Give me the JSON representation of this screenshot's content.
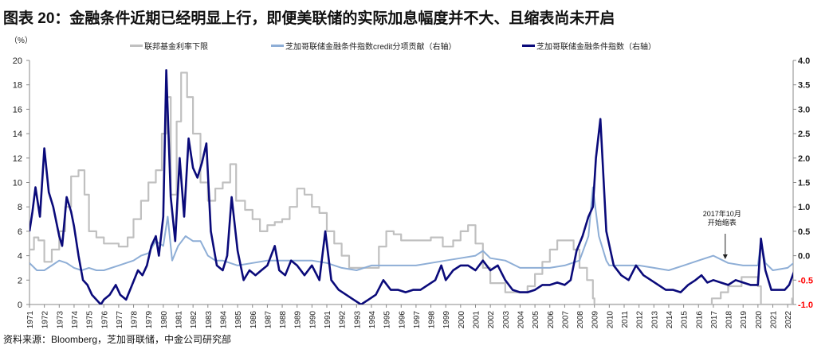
{
  "title": "图表 20：金融条件近期已经明显上行，即便美联储的实际加息幅度并不大、且缩表尚未开启",
  "source": "资料来源：Bloomberg，芝加哥联储，中金公司研究部",
  "colors": {
    "fed": "#c0c0c0",
    "credit": "#8eaed6",
    "nfci": "#0a0a7a",
    "neg_label": "#ff0000"
  },
  "chart_data": {
    "type": "line",
    "unit_left": "（%）",
    "ylim_left": [
      0,
      20
    ],
    "yticks_left": [
      "0",
      "2",
      "4",
      "6",
      "8",
      "10",
      "12",
      "14",
      "16",
      "18",
      "20"
    ],
    "ylim_right": [
      -1.0,
      4.0
    ],
    "yticks_right": [
      "-1.0",
      "-0.5",
      "0.0",
      "0.5",
      "1.0",
      "1.5",
      "2.0",
      "2.5",
      "3.0",
      "3.5",
      "4.0"
    ],
    "xticks": [
      "1971",
      "1972",
      "1973",
      "1974",
      "1975",
      "1976",
      "1977",
      "1978",
      "1979",
      "1980",
      "1981",
      "1982",
      "1983",
      "1984",
      "1985",
      "1986",
      "1987",
      "1988",
      "1989",
      "1990",
      "1991",
      "1992",
      "1993",
      "1994",
      "1995",
      "1996",
      "1997",
      "1998",
      "1999",
      "2000",
      "2001",
      "2002",
      "2003",
      "2004",
      "2005",
      "2006",
      "2007",
      "2008",
      "2009",
      "2010",
      "2011",
      "2012",
      "2013",
      "2014",
      "2015",
      "2016",
      "2017",
      "2018",
      "2019",
      "2020",
      "2021",
      "2022"
    ],
    "annotation": {
      "line1": "2017年10月",
      "line2": "开始缩表",
      "x": 2017.8
    },
    "series": [
      {
        "name": "联邦基金利率下限",
        "axis": "left",
        "x": [
          1971,
          1971.3,
          1971.6,
          1972,
          1972.5,
          1973,
          1973.4,
          1973.8,
          1974.3,
          1974.7,
          1975,
          1975.5,
          1976,
          1977,
          1977.6,
          1978,
          1978.5,
          1979,
          1979.5,
          1979.9,
          1980.2,
          1980.5,
          1980.9,
          1981.2,
          1981.6,
          1982,
          1982.5,
          1983,
          1983.5,
          1984,
          1984.5,
          1984.9,
          1985.5,
          1986,
          1986.5,
          1987,
          1987.5,
          1988,
          1988.5,
          1989,
          1989.5,
          1990,
          1990.5,
          1991,
          1991.5,
          1992,
          1992.5,
          1993,
          1994,
          1994.5,
          1995,
          1995.5,
          1996,
          1997,
          1998,
          1998.8,
          1999,
          1999.5,
          2000,
          2000.5,
          2001,
          2001.5,
          2002,
          2003,
          2004,
          2004.5,
          2005,
          2005.5,
          2006,
          2006.5,
          2007,
          2007.6,
          2008,
          2008.5,
          2008.9,
          2009,
          2015.9,
          2016.9,
          2017.5,
          2018,
          2018.9,
          2019.5,
          2020,
          2020.2,
          2022.1,
          2022.3,
          2022.6
        ],
        "values": [
          4.5,
          5.5,
          5.25,
          3.5,
          4.5,
          6,
          8,
          10.5,
          11,
          9,
          6,
          5.5,
          5,
          4.75,
          5.5,
          7,
          8.5,
          10,
          11,
          14,
          17,
          9,
          15,
          19,
          17,
          14,
          10,
          8.5,
          9.5,
          10,
          11.5,
          8.5,
          7.75,
          7,
          6,
          6.5,
          6.75,
          7,
          8,
          9.5,
          9,
          8,
          7.5,
          6,
          5,
          4,
          3,
          3,
          3,
          4.75,
          6,
          5.75,
          5.25,
          5.25,
          5.5,
          4.75,
          4.75,
          5.25,
          6,
          6.5,
          5,
          3,
          1.75,
          1,
          1,
          1.5,
          2.5,
          3.5,
          4.5,
          5.25,
          5.25,
          4.5,
          3,
          2,
          0.5,
          0,
          0,
          0.5,
          1,
          1.5,
          2.25,
          2.25,
          1.5,
          0,
          0,
          0.5,
          1.5
        ]
      },
      {
        "name": "芝加哥联储金融条件指数credit分项贡献（右轴）",
        "axis": "right",
        "x": [
          1971,
          1971.5,
          1972,
          1972.5,
          1973,
          1973.5,
          1974,
          1974.5,
          1975,
          1975.5,
          1976,
          1977,
          1978,
          1978.5,
          1979,
          1979.5,
          1980,
          1980.3,
          1980.6,
          1981,
          1981.5,
          1982,
          1982.5,
          1983,
          1983.5,
          1984,
          1985,
          1986,
          1987,
          1988,
          1989,
          1990,
          1991,
          1992,
          1993,
          1994,
          1995,
          1996,
          1997,
          1998,
          1999,
          2000,
          2001,
          2001.5,
          2002,
          2003,
          2004,
          2005,
          2006,
          2007,
          2008,
          2008.6,
          2008.9,
          2009.3,
          2009.8,
          2010,
          2011,
          2012,
          2013,
          2014,
          2015,
          2016,
          2017,
          2018,
          2019,
          2020,
          2020.2,
          2020.5,
          2021,
          2022,
          2022.6
        ],
        "values": [
          -0.15,
          -0.3,
          -0.3,
          -0.2,
          -0.1,
          -0.15,
          -0.25,
          -0.3,
          -0.25,
          -0.3,
          -0.3,
          -0.2,
          -0.1,
          0.0,
          0.05,
          0.3,
          0.2,
          0.8,
          -0.1,
          0.2,
          0.4,
          0.3,
          0.3,
          0.0,
          -0.1,
          -0.1,
          -0.2,
          -0.15,
          -0.1,
          -0.1,
          -0.1,
          -0.1,
          -0.15,
          -0.25,
          -0.3,
          -0.2,
          -0.2,
          -0.2,
          -0.2,
          -0.15,
          -0.1,
          -0.05,
          0.0,
          0.1,
          -0.05,
          -0.1,
          -0.25,
          -0.25,
          -0.25,
          -0.2,
          -0.1,
          0.4,
          1.4,
          0.4,
          -0.1,
          -0.2,
          -0.2,
          -0.2,
          -0.25,
          -0.3,
          -0.2,
          -0.1,
          0.0,
          -0.15,
          -0.2,
          -0.2,
          0.3,
          -0.15,
          -0.3,
          -0.25,
          -0.1
        ]
      },
      {
        "name": "芝加哥联储金融条件指数（右轴）",
        "axis": "right",
        "x": [
          1971,
          1971.2,
          1971.4,
          1971.7,
          1972,
          1972.3,
          1972.6,
          1973,
          1973.2,
          1973.5,
          1973.8,
          1974,
          1974.3,
          1974.6,
          1974.9,
          1975.2,
          1975.5,
          1975.8,
          1976,
          1976.4,
          1976.8,
          1977.1,
          1977.5,
          1977.9,
          1978.3,
          1978.6,
          1978.9,
          1979.2,
          1979.5,
          1979.7,
          1980,
          1980.2,
          1980.5,
          1980.8,
          1981.1,
          1981.4,
          1981.7,
          1982,
          1982.3,
          1982.6,
          1982.9,
          1983.2,
          1983.6,
          1984,
          1984.3,
          1984.6,
          1985,
          1985.4,
          1985.8,
          1986.2,
          1986.6,
          1987,
          1987.5,
          1987.8,
          1988.2,
          1988.6,
          1989,
          1989.5,
          1990,
          1990.5,
          1990.9,
          1991.3,
          1991.8,
          1992.3,
          1992.8,
          1993.3,
          1993.8,
          1994.3,
          1994.8,
          1995.3,
          1995.8,
          1996.3,
          1996.8,
          1997.3,
          1997.8,
          1998.3,
          1998.7,
          1999,
          1999.5,
          2000,
          2000.5,
          2001,
          2001.5,
          2002,
          2002.5,
          2003,
          2003.5,
          2004,
          2004.5,
          2005,
          2005.5,
          2006,
          2006.5,
          2007,
          2007.4,
          2007.8,
          2008.2,
          2008.6,
          2008.9,
          2009.1,
          2009.4,
          2009.8,
          2010.3,
          2010.8,
          2011.3,
          2011.8,
          2012.3,
          2012.8,
          2013.3,
          2013.8,
          2014.3,
          2014.8,
          2015.3,
          2015.8,
          2016.2,
          2016.6,
          2017,
          2017.5,
          2018,
          2018.5,
          2019,
          2019.5,
          2020,
          2020.2,
          2020.5,
          2020.9,
          2021.3,
          2021.8,
          2022.1,
          2022.4,
          2022.6
        ],
        "values": [
          0.5,
          0.9,
          1.4,
          0.8,
          2.2,
          1.3,
          1.0,
          0.4,
          0.2,
          1.2,
          0.9,
          0.6,
          0.0,
          -0.5,
          -0.6,
          -0.8,
          -0.9,
          -1.0,
          -0.9,
          -0.8,
          -0.6,
          -0.8,
          -0.9,
          -0.6,
          -0.3,
          -0.4,
          -0.2,
          0.2,
          0.4,
          0.0,
          0.8,
          3.8,
          1.2,
          0.3,
          2.0,
          0.8,
          2.4,
          1.8,
          1.6,
          1.9,
          2.3,
          0.5,
          -0.2,
          -0.3,
          0.0,
          1.2,
          0.1,
          -0.5,
          -0.3,
          -0.4,
          -0.3,
          -0.2,
          0.2,
          -0.3,
          -0.4,
          -0.1,
          -0.2,
          -0.4,
          -0.2,
          -0.5,
          0.5,
          -0.5,
          -0.7,
          -0.8,
          -0.9,
          -1.0,
          -0.9,
          -0.8,
          -0.5,
          -0.7,
          -0.7,
          -0.75,
          -0.7,
          -0.7,
          -0.6,
          -0.5,
          -0.2,
          -0.5,
          -0.3,
          -0.2,
          -0.2,
          -0.3,
          -0.1,
          -0.3,
          -0.2,
          -0.5,
          -0.7,
          -0.75,
          -0.75,
          -0.7,
          -0.6,
          -0.6,
          -0.55,
          -0.6,
          -0.5,
          0.1,
          0.4,
          0.8,
          1.0,
          2.0,
          2.8,
          0.5,
          -0.2,
          -0.4,
          -0.5,
          -0.2,
          -0.4,
          -0.5,
          -0.6,
          -0.7,
          -0.7,
          -0.75,
          -0.6,
          -0.5,
          -0.4,
          -0.55,
          -0.5,
          -0.55,
          -0.6,
          -0.5,
          -0.55,
          -0.6,
          -0.6,
          0.35,
          -0.3,
          -0.7,
          -0.7,
          -0.7,
          -0.6,
          -0.35,
          -0.2
        ]
      }
    ]
  }
}
